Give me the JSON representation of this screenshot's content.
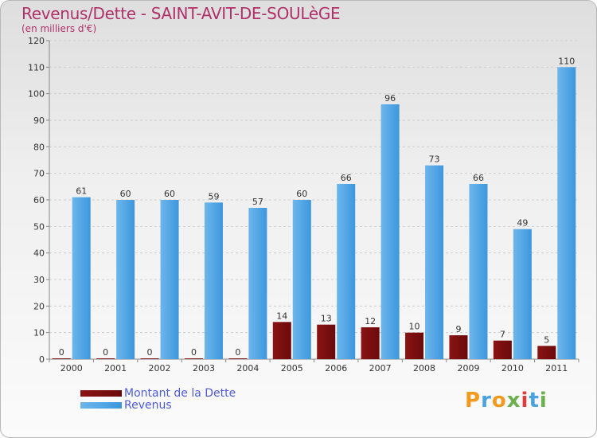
{
  "header": {
    "title": "Revenus/Dette - SAINT-AVIT-DE-SOULèGE",
    "subtitle": "(en milliers d'€)"
  },
  "legend": {
    "items": [
      {
        "label": "Montant de la Dette",
        "color": "#6b0a0a"
      },
      {
        "label": "Revenus",
        "color": "#3d97dd"
      }
    ]
  },
  "logo": {
    "letters": [
      "P",
      "r",
      "o",
      "x",
      "i",
      "t",
      "i"
    ],
    "colors": [
      "#f39a1e",
      "#4aa3df",
      "#f39a1e",
      "#6ab04c",
      "#e23b3b",
      "#4aa3df",
      "#6ab04c"
    ]
  },
  "colors": {
    "grid": "#cfcfcf",
    "axis_text": "#333333",
    "debt": "#6b0a0a",
    "revenue": "#3d97dd"
  },
  "chart_data": {
    "type": "bar",
    "categories": [
      "2000",
      "2001",
      "2002",
      "2003",
      "2004",
      "2005",
      "2006",
      "2007",
      "2008",
      "2009",
      "2010",
      "2011"
    ],
    "series": [
      {
        "name": "Montant de la Dette",
        "values": [
          0,
          0,
          0,
          0,
          0,
          14,
          13,
          12,
          10,
          9,
          7,
          5
        ]
      },
      {
        "name": "Revenus",
        "values": [
          61,
          60,
          60,
          59,
          57,
          60,
          66,
          96,
          73,
          66,
          49,
          110
        ]
      }
    ],
    "ylim": [
      0,
      120
    ],
    "yticks": [
      0,
      10,
      20,
      30,
      40,
      50,
      60,
      70,
      80,
      90,
      100,
      110,
      120
    ],
    "grid": true,
    "legend_position": "bottom-left"
  }
}
